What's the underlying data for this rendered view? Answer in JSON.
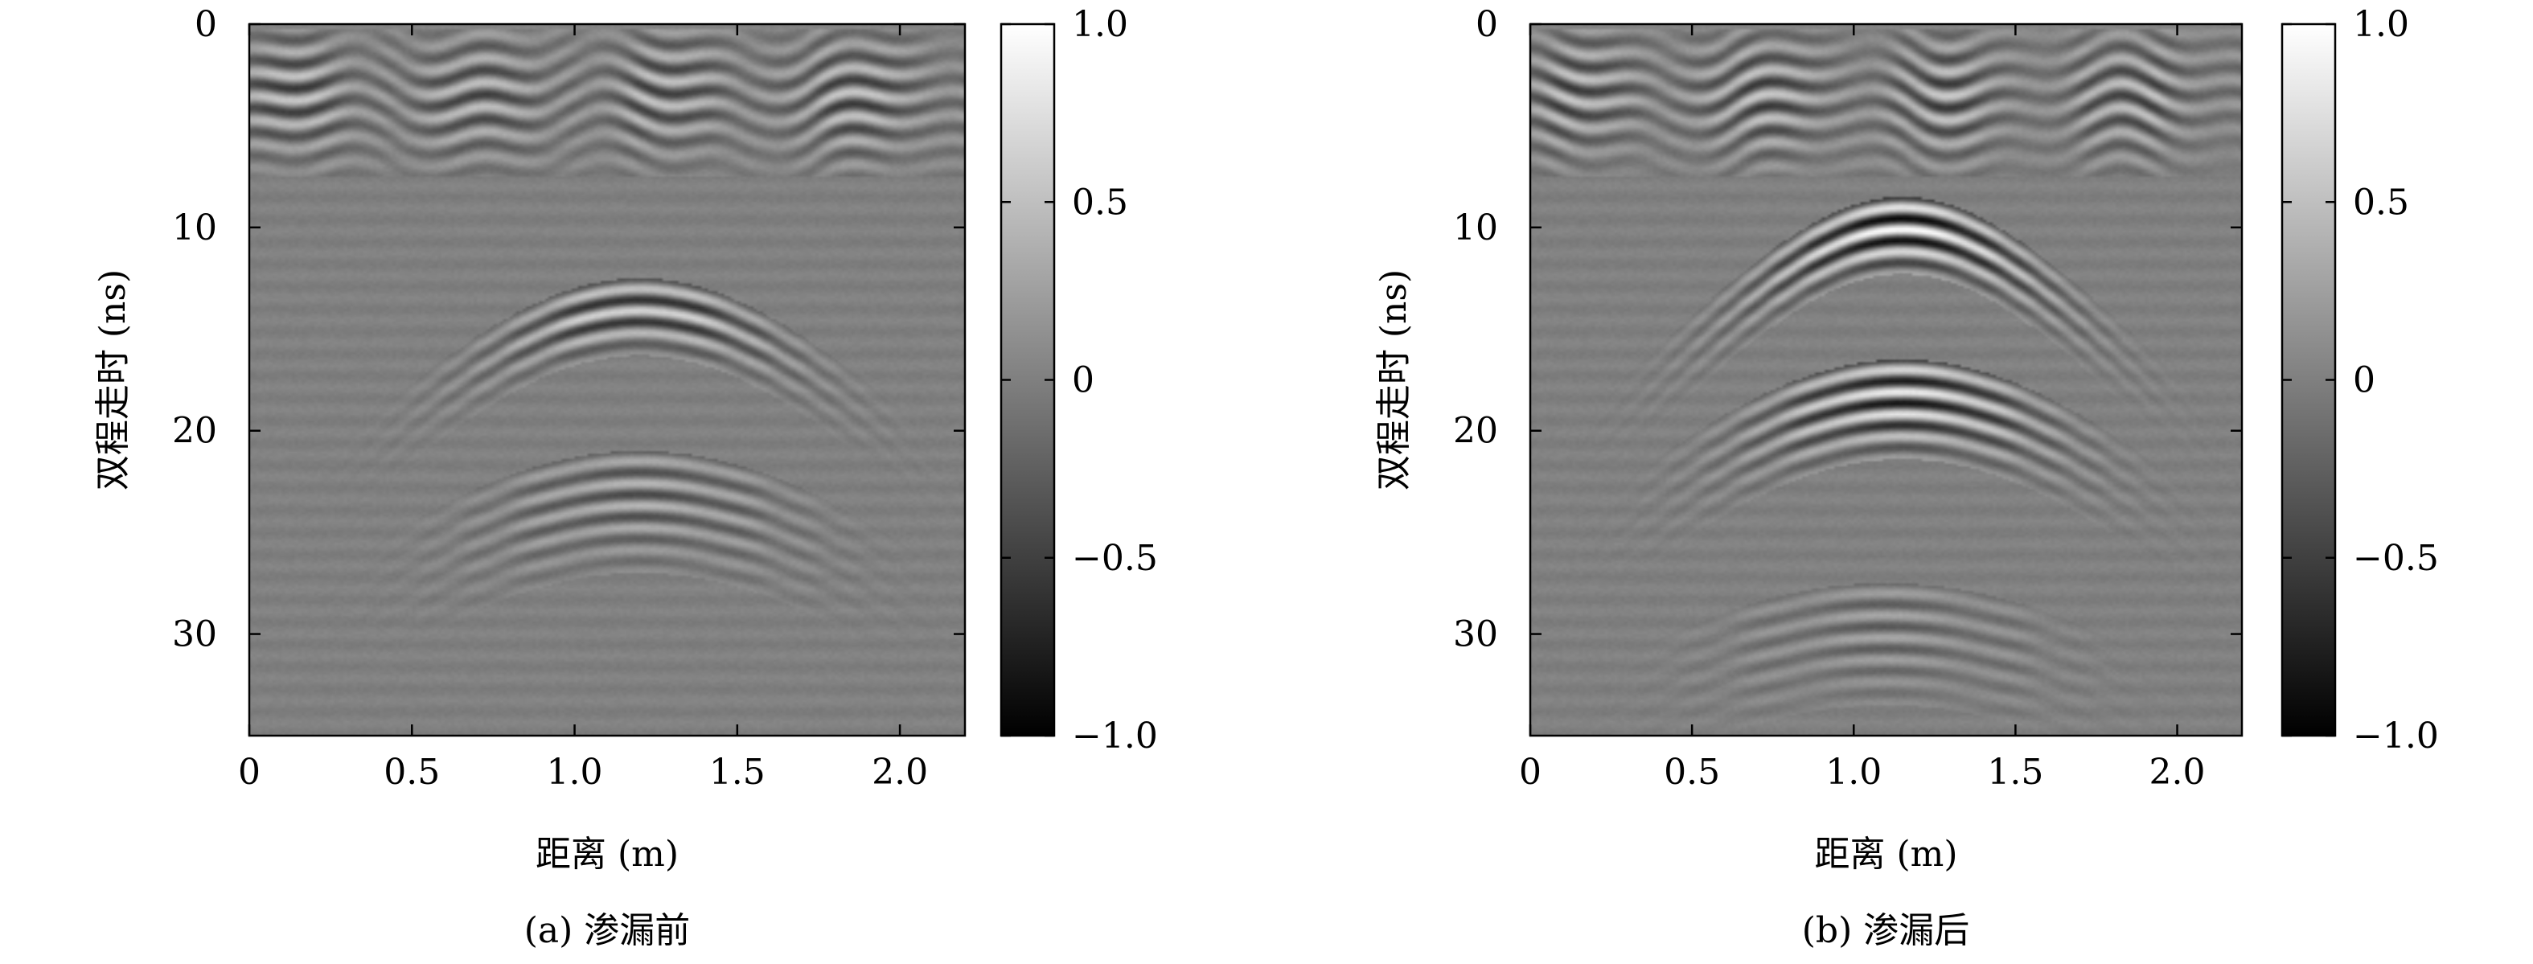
{
  "chart_data": [
    {
      "type": "heatmap",
      "caption": "(a) 渗漏前",
      "xlabel": "距离 (m)",
      "ylabel": "双程走时 (ns)",
      "xlim": [
        0,
        2.2
      ],
      "ylim": [
        35,
        0
      ],
      "xticks": [
        {
          "value": 0,
          "label": "0"
        },
        {
          "value": 0.5,
          "label": "0.5"
        },
        {
          "value": 1.0,
          "label": "1.0"
        },
        {
          "value": 1.5,
          "label": "1.5"
        },
        {
          "value": 2.0,
          "label": "2.0"
        }
      ],
      "yticks": [
        {
          "value": 0,
          "label": "0"
        },
        {
          "value": 10,
          "label": "10"
        },
        {
          "value": 20,
          "label": "20"
        },
        {
          "value": 30,
          "label": "30"
        }
      ],
      "colorbar": {
        "range": [
          -1.0,
          1.0
        ],
        "colormap": "gray",
        "ticks": [
          {
            "value": 1.0,
            "label": "1.0"
          },
          {
            "value": 0.5,
            "label": "0.5"
          },
          {
            "value": 0,
            "label": "0"
          },
          {
            "value": -0.5,
            "label": "−0.5"
          },
          {
            "value": -1.0,
            "label": "−1.0"
          }
        ]
      },
      "features": {
        "surface_bands_ns": [
          0.5,
          6.5
        ],
        "hyperbolas": [
          {
            "apex_x": 1.2,
            "apex_t": 13.0,
            "cycles": 3,
            "amplitude": 0.7
          },
          {
            "apex_x": 1.2,
            "apex_t": 21.5,
            "cycles": 5,
            "amplitude": 0.45
          }
        ]
      }
    },
    {
      "type": "heatmap",
      "caption": "(b) 渗漏后",
      "xlabel": "距离 (m)",
      "ylabel": "双程走时 (ns)",
      "xlim": [
        0,
        2.2
      ],
      "ylim": [
        35,
        0
      ],
      "xticks": [
        {
          "value": 0,
          "label": "0"
        },
        {
          "value": 0.5,
          "label": "0.5"
        },
        {
          "value": 1.0,
          "label": "1.0"
        },
        {
          "value": 1.5,
          "label": "1.5"
        },
        {
          "value": 2.0,
          "label": "2.0"
        }
      ],
      "yticks": [
        {
          "value": 0,
          "label": "0"
        },
        {
          "value": 10,
          "label": "10"
        },
        {
          "value": 20,
          "label": "20"
        },
        {
          "value": 30,
          "label": "30"
        }
      ],
      "colorbar": {
        "range": [
          -1.0,
          1.0
        ],
        "colormap": "gray",
        "ticks": [
          {
            "value": 1.0,
            "label": "1.0"
          },
          {
            "value": 0.5,
            "label": "0.5"
          },
          {
            "value": 0,
            "label": "0"
          },
          {
            "value": -0.5,
            "label": "−0.5"
          },
          {
            "value": -1.0,
            "label": "−1.0"
          }
        ]
      },
      "features": {
        "surface_bands_ns": [
          0.5,
          6.5
        ],
        "hyperbolas": [
          {
            "apex_x": 1.15,
            "apex_t": 9.0,
            "cycles": 3,
            "amplitude": 0.95
          },
          {
            "apex_x": 1.15,
            "apex_t": 17.0,
            "cycles": 4,
            "amplitude": 0.85
          },
          {
            "apex_x": 1.1,
            "apex_t": 28.0,
            "cycles": 5,
            "amplitude": 0.3
          }
        ]
      }
    }
  ]
}
